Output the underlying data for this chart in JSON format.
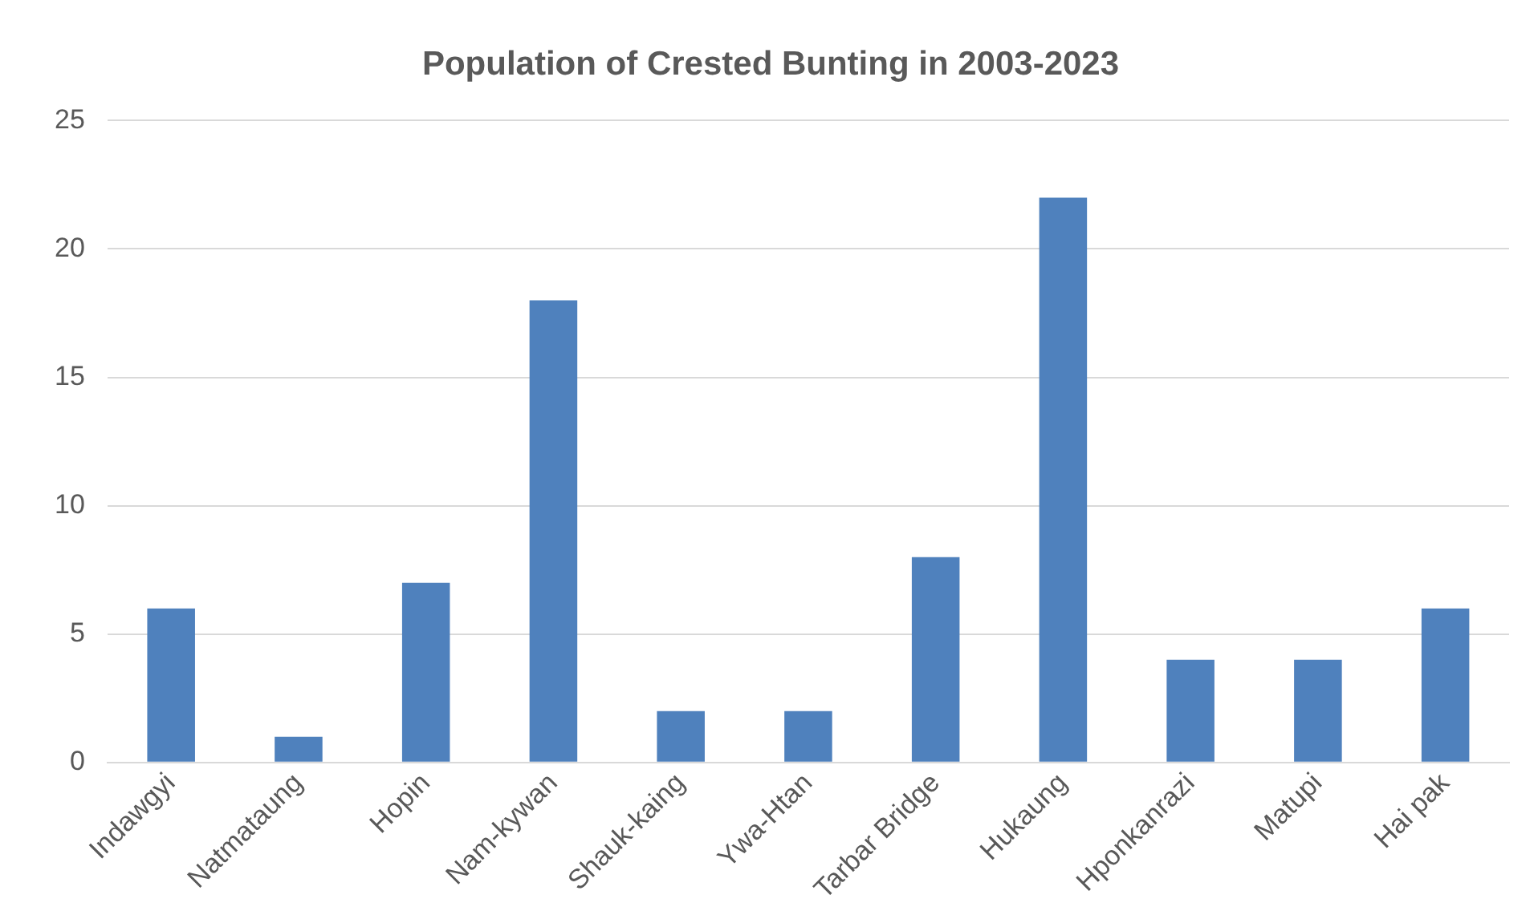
{
  "chart_data": {
    "type": "bar",
    "title": "Population of Crested Bunting in 2003-2023",
    "categories": [
      "Indawgyi",
      "Natmataung",
      "Hopin",
      "Nam-kywan",
      "Shauk-kaing",
      "Ywa-Htan",
      "Tarbar Bridge",
      "Hukaung",
      "Hponkanrazi",
      "Matupi",
      "Hai pak"
    ],
    "values": [
      6,
      1,
      7,
      18,
      2,
      2,
      8,
      22,
      4,
      4,
      6
    ],
    "color": "#4f81bd",
    "ylim": [
      0,
      25
    ],
    "yticks": [
      0,
      5,
      10,
      15,
      20,
      25
    ],
    "grid": "y"
  }
}
